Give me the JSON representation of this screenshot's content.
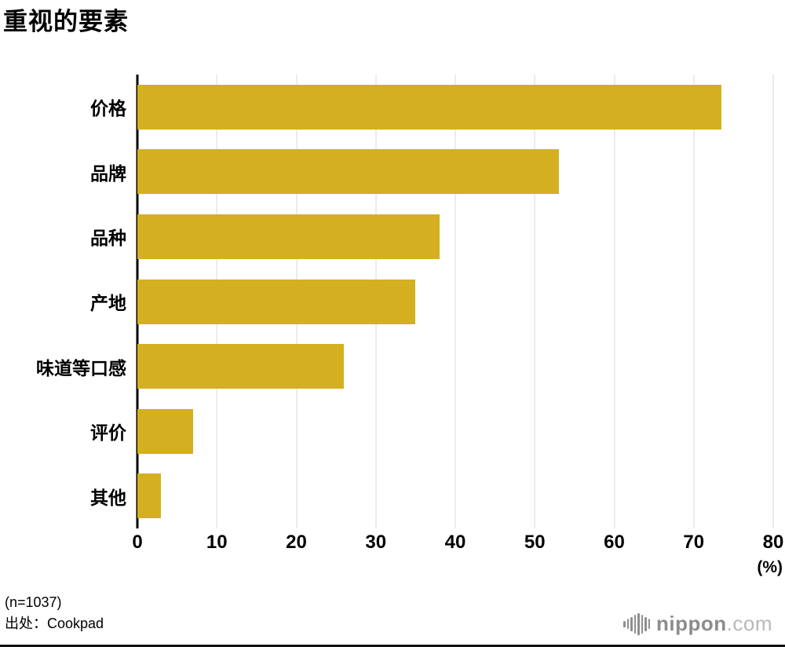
{
  "title": "重视的要素",
  "axis": {
    "unit_label": "(%)",
    "ticks": [
      0,
      10,
      20,
      30,
      40,
      50,
      60,
      70,
      80
    ]
  },
  "footer": {
    "sample": "(n=1037)",
    "source": "出处：Cookpad"
  },
  "logo": {
    "name": "nippon",
    "suffix": ".com",
    "icon": "soundwave-icon"
  },
  "colors": {
    "bar": "#d4b021",
    "grid": "#d8d8d8",
    "axis": "#000000"
  },
  "chart_data": {
    "type": "bar",
    "orientation": "horizontal",
    "title": "重视的要素",
    "categories": [
      "价格",
      "品牌",
      "品种",
      "产地",
      "味道等口感",
      "评价",
      "其他"
    ],
    "values": [
      73.5,
      53,
      38,
      35,
      26,
      7,
      3
    ],
    "xlabel": "(%)",
    "ylabel": "",
    "xlim": [
      0,
      80
    ],
    "grid": true,
    "legend": "none"
  }
}
